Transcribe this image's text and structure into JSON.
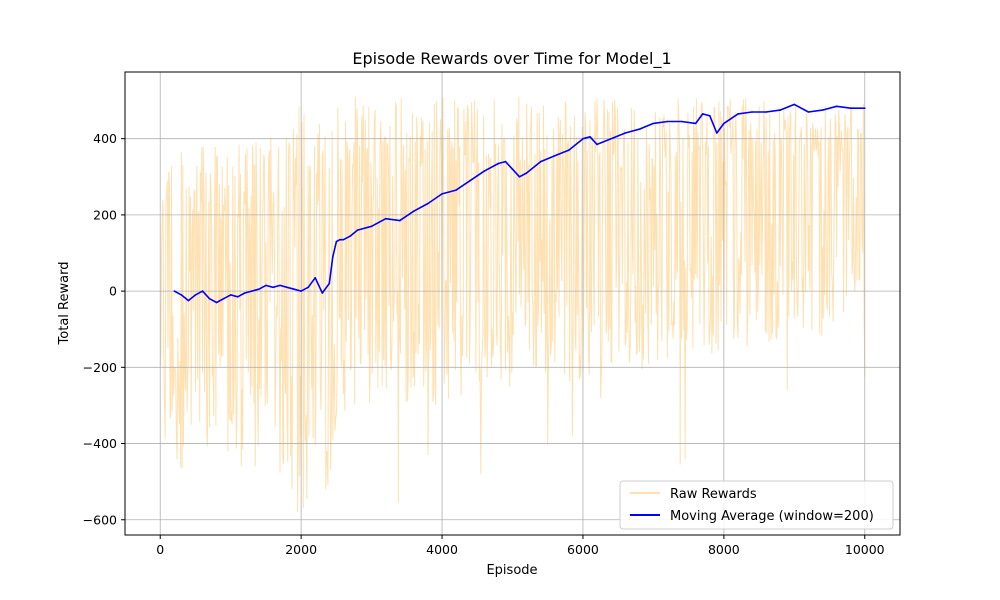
{
  "chart_data": {
    "type": "line",
    "title": "Episode Rewards over Time for Model_1",
    "xlabel": "Episode",
    "ylabel": "Total Reward",
    "xlim": [
      -500,
      10500
    ],
    "ylim": [
      -640,
      575
    ],
    "x_ticks": [
      0,
      2000,
      4000,
      6000,
      8000,
      10000
    ],
    "y_ticks": [
      -600,
      -400,
      -200,
      0,
      200,
      400
    ],
    "x_tick_labels": [
      "0",
      "2000",
      "4000",
      "6000",
      "8000",
      "10000"
    ],
    "y_tick_labels": [
      "−600",
      "−400",
      "−200",
      "0",
      "200",
      "400"
    ],
    "grid": true,
    "legend_position": "bottom-right",
    "series": [
      {
        "name": "Raw Rewards",
        "color": "#ffe0b0",
        "x_range": [
          0,
          10000
        ],
        "envelope": {
          "x": [
            0,
            200,
            500,
            800,
            1000,
            1200,
            1500,
            1800,
            2000,
            2200,
            2400,
            2500,
            3000,
            3500,
            4000,
            4500,
            5000,
            5500,
            6000,
            6500,
            7000,
            7500,
            8000,
            8500,
            9000,
            9500,
            10000
          ],
          "upper": [
            380,
            400,
            380,
            380,
            380,
            400,
            400,
            420,
            510,
            410,
            510,
            510,
            512,
            512,
            512,
            510,
            510,
            510,
            510,
            508,
            508,
            506,
            505,
            505,
            505,
            505,
            505
          ],
          "lower": [
            -450,
            -470,
            -470,
            -470,
            -440,
            -440,
            -440,
            -520,
            -580,
            -520,
            -520,
            -330,
            -300,
            -300,
            -300,
            -280,
            -270,
            -250,
            -230,
            -220,
            -200,
            -180,
            -160,
            -140,
            -130,
            -120,
            -100
          ],
          "outlier_spikes": [
            {
              "x": 1150,
              "y": -460
            },
            {
              "x": 1350,
              "y": -460
            },
            {
              "x": 1870,
              "y": -520
            },
            {
              "x": 1950,
              "y": -580
            },
            {
              "x": 2030,
              "y": -570
            },
            {
              "x": 2350,
              "y": -520
            },
            {
              "x": 3380,
              "y": -555
            },
            {
              "x": 3800,
              "y": -430
            },
            {
              "x": 4550,
              "y": -480
            },
            {
              "x": 5500,
              "y": -405
            },
            {
              "x": 5850,
              "y": -380
            },
            {
              "x": 6250,
              "y": -280
            },
            {
              "x": 7380,
              "y": -455
            },
            {
              "x": 7450,
              "y": -440
            },
            {
              "x": 8900,
              "y": -260
            },
            {
              "x": 10000,
              "y": -225
            }
          ]
        }
      },
      {
        "name": "Moving Average (window=200)",
        "color": "#0000ff",
        "x": [
          200,
          300,
          400,
          500,
          600,
          700,
          800,
          900,
          1000,
          1100,
          1200,
          1300,
          1400,
          1500,
          1600,
          1700,
          1800,
          1900,
          2000,
          2100,
          2200,
          2300,
          2400,
          2450,
          2500,
          2550,
          2600,
          2700,
          2800,
          3000,
          3200,
          3400,
          3600,
          3800,
          4000,
          4200,
          4400,
          4600,
          4800,
          4900,
          5000,
          5100,
          5200,
          5400,
          5600,
          5800,
          6000,
          6100,
          6200,
          6400,
          6600,
          6800,
          7000,
          7200,
          7400,
          7600,
          7700,
          7800,
          7900,
          8000,
          8200,
          8400,
          8600,
          8800,
          9000,
          9200,
          9400,
          9600,
          9800,
          10000
        ],
        "values": [
          0,
          -10,
          -25,
          -10,
          0,
          -20,
          -30,
          -20,
          -10,
          -15,
          -5,
          0,
          5,
          15,
          10,
          15,
          10,
          5,
          0,
          10,
          35,
          -5,
          20,
          90,
          130,
          135,
          135,
          145,
          160,
          170,
          190,
          185,
          210,
          230,
          255,
          265,
          290,
          315,
          335,
          340,
          320,
          300,
          310,
          340,
          355,
          370,
          400,
          405,
          385,
          400,
          415,
          425,
          440,
          445,
          445,
          440,
          465,
          460,
          415,
          440,
          465,
          470,
          470,
          475,
          490,
          470,
          475,
          485,
          480,
          480
        ]
      }
    ]
  }
}
